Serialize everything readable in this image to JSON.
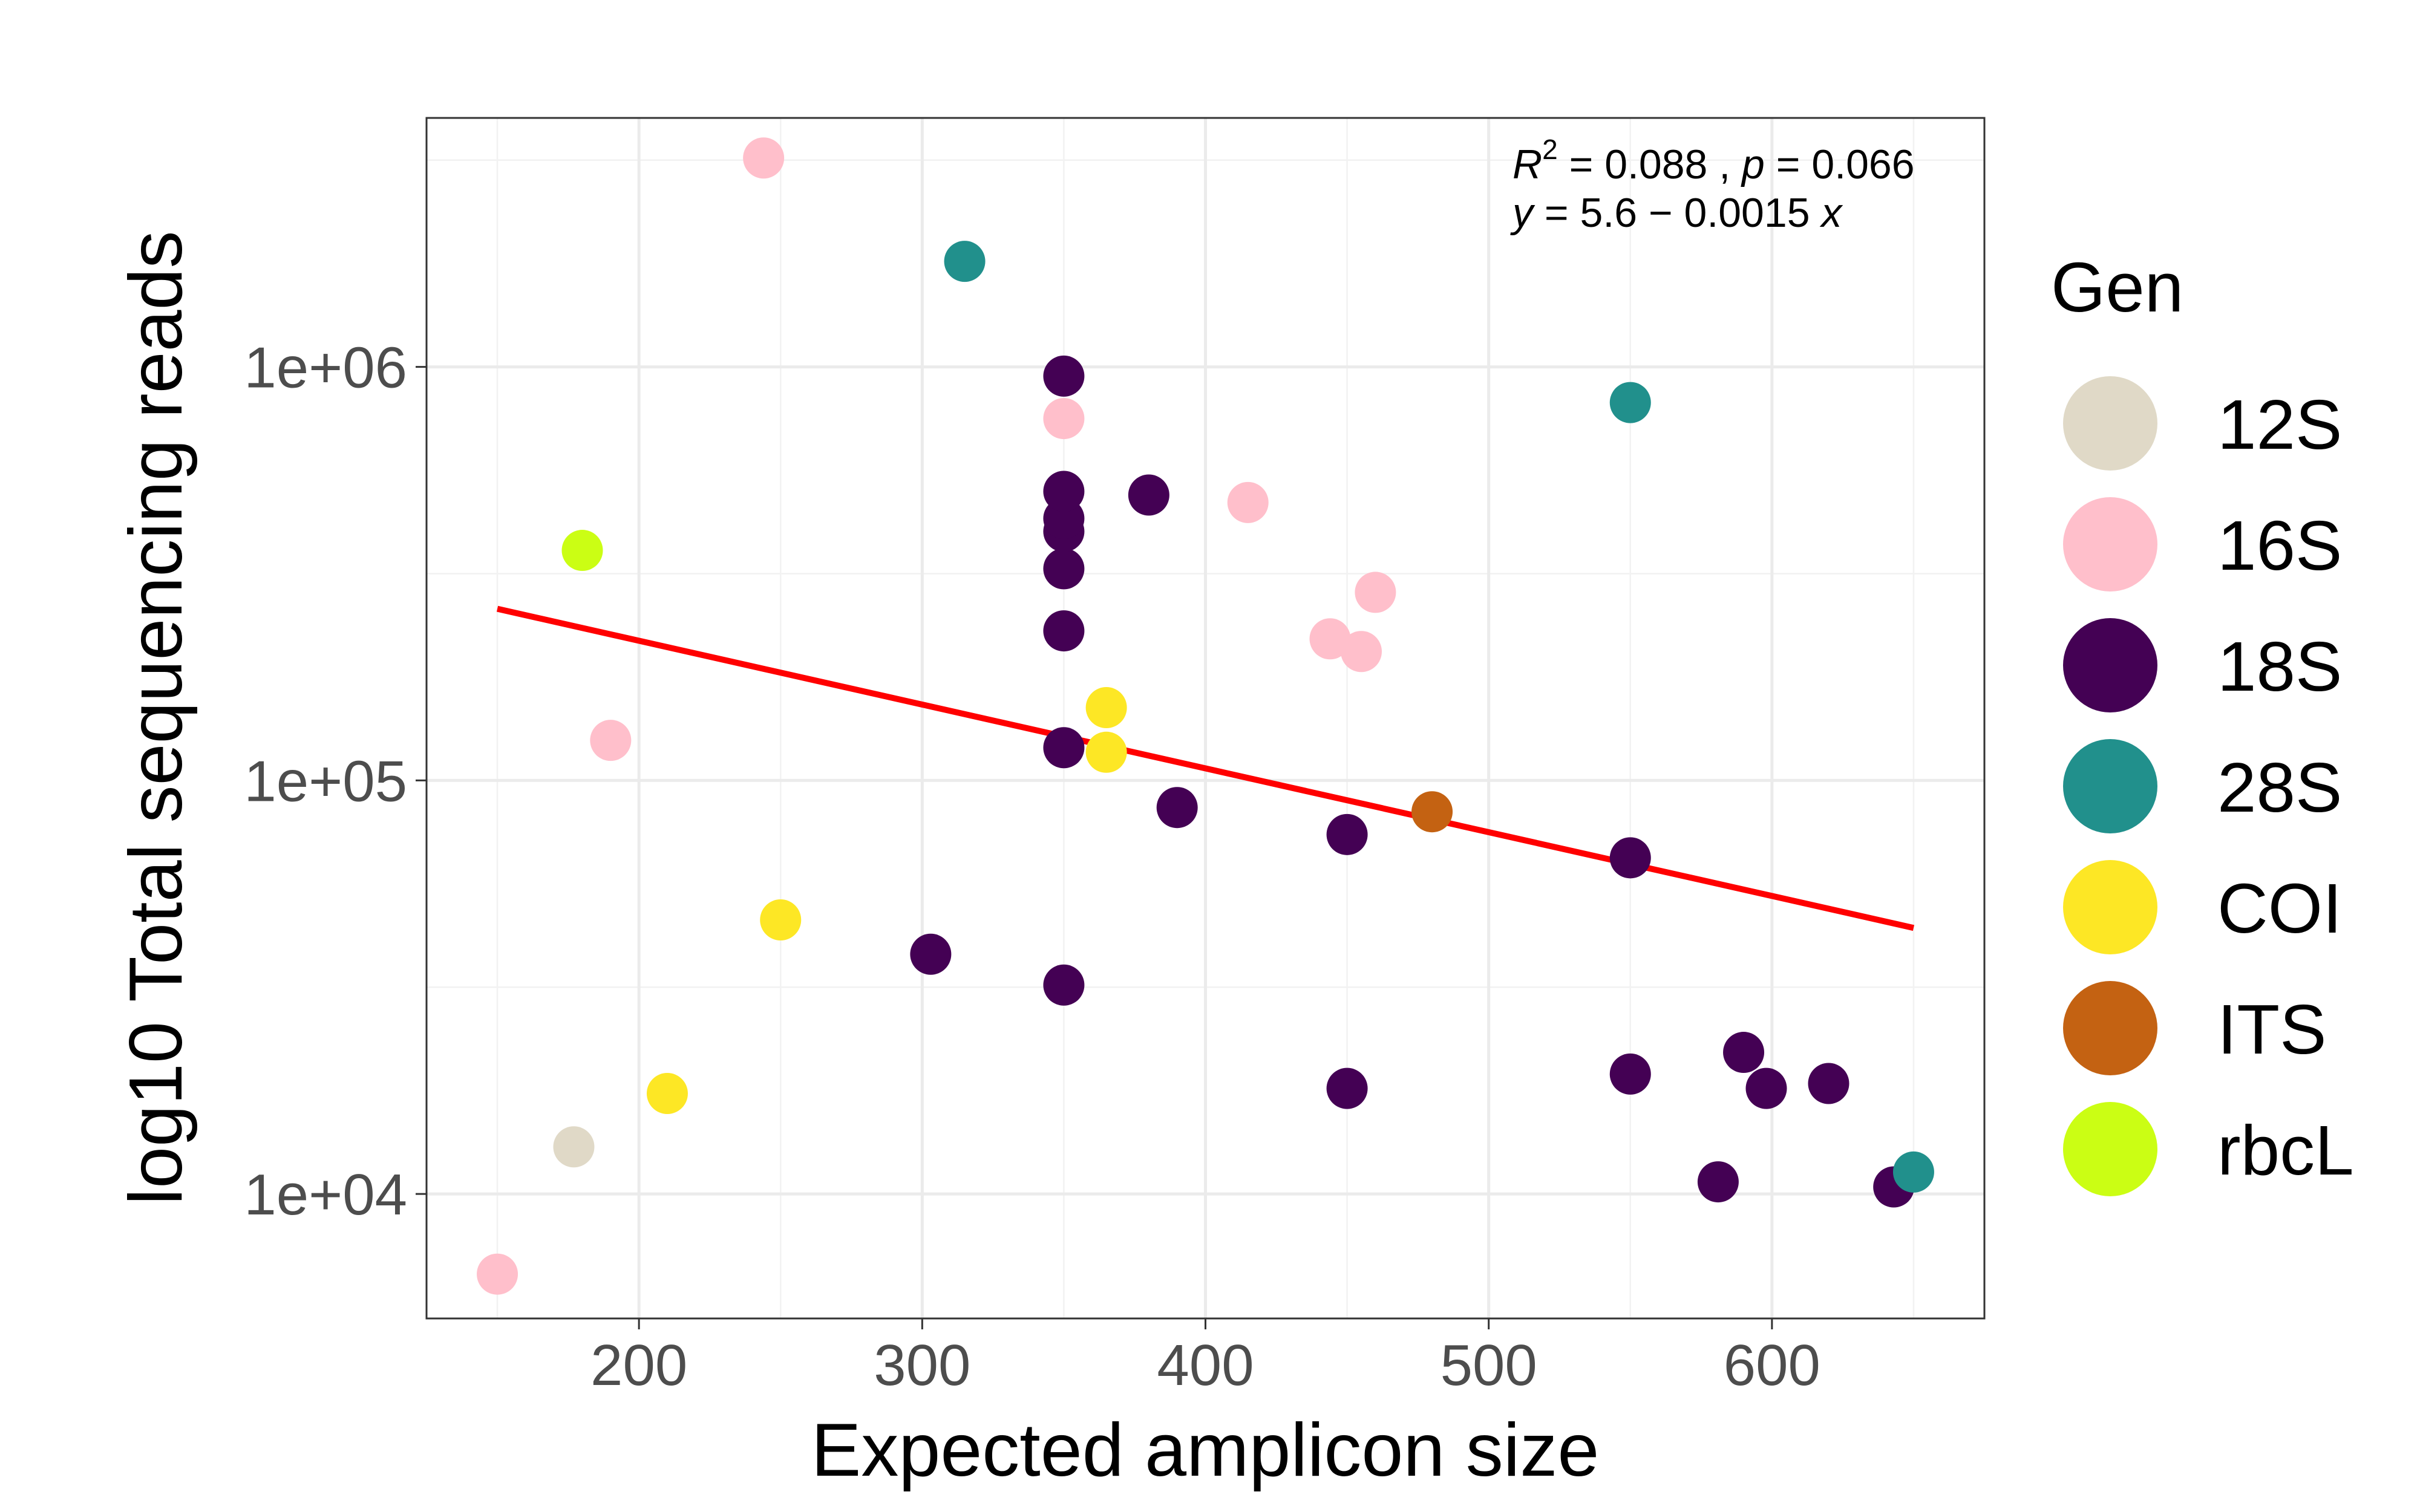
{
  "chart_data": {
    "type": "scatter",
    "title": "",
    "xlabel": "Expected amplicon size",
    "ylabel": "log10 Total sequencing reads",
    "xlim": [
      125,
      675
    ],
    "ylim": [
      5000,
      4000000
    ],
    "y_scale": "log10",
    "x_ticks": [
      {
        "value": 200,
        "label": "200"
      },
      {
        "value": 300,
        "label": "300"
      },
      {
        "value": 400,
        "label": "400"
      },
      {
        "value": 500,
        "label": "500"
      },
      {
        "value": 600,
        "label": "600"
      }
    ],
    "y_ticks": [
      {
        "value": 10000,
        "label": "1e+04"
      },
      {
        "value": 100000,
        "label": "1e+05"
      },
      {
        "value": 1000000,
        "label": "1e+06"
      }
    ],
    "grid": true,
    "legend": {
      "title": "Gen",
      "position": "right",
      "entries": [
        {
          "name": "12S",
          "color": "#e0d9c7"
        },
        {
          "name": "16S",
          "color": "#ffbfcb"
        },
        {
          "name": "18S",
          "color": "#440154"
        },
        {
          "name": "28S",
          "color": "#21908c"
        },
        {
          "name": "COI",
          "color": "#fde725"
        },
        {
          "name": "ITS",
          "color": "#c46212"
        },
        {
          "name": "rbcL",
          "color": "#cbfe14"
        }
      ]
    },
    "series": [
      {
        "name": "12S",
        "points": [
          [
            177,
            13000
          ]
        ]
      },
      {
        "name": "16S",
        "points": [
          [
            150,
            6400
          ],
          [
            190,
            125000
          ],
          [
            244,
            3200000
          ],
          [
            350,
            750000
          ],
          [
            415,
            470000
          ],
          [
            444,
            220000
          ],
          [
            455,
            205000
          ],
          [
            460,
            285000
          ]
        ]
      },
      {
        "name": "18S",
        "points": [
          [
            303,
            38000
          ],
          [
            350,
            32000
          ],
          [
            350,
            120000
          ],
          [
            350,
            230000
          ],
          [
            350,
            325000
          ],
          [
            350,
            400000
          ],
          [
            350,
            430000
          ],
          [
            350,
            500000
          ],
          [
            350,
            950000
          ],
          [
            380,
            490000
          ],
          [
            390,
            86000
          ],
          [
            450,
            74000
          ],
          [
            450,
            18000
          ],
          [
            550,
            65000
          ],
          [
            550,
            19500
          ],
          [
            581,
            10700
          ],
          [
            590,
            22000
          ],
          [
            598,
            18000
          ],
          [
            620,
            18500
          ],
          [
            643,
            10400
          ]
        ]
      },
      {
        "name": "28S",
        "points": [
          [
            315,
            1800000
          ],
          [
            550,
            820000
          ],
          [
            650,
            11300
          ]
        ]
      },
      {
        "name": "COI",
        "points": [
          [
            210,
            17500
          ],
          [
            250,
            46000
          ],
          [
            365,
            150000
          ],
          [
            365,
            117000
          ]
        ]
      },
      {
        "name": "ITS",
        "points": [
          [
            480,
            84000
          ]
        ]
      },
      {
        "name": "rbcL",
        "points": [
          [
            180,
            360000
          ]
        ]
      }
    ],
    "fit_line": {
      "color": "#ff0000",
      "points": [
        [
          150,
          260000
        ],
        [
          650,
          44000
        ]
      ]
    },
    "annotation": {
      "line1": {
        "r": "R",
        "sup": "2",
        "a": " = 0.088 , ",
        "p": "p",
        "b": " = 0.066"
      },
      "line2": {
        "y": "y",
        "a": " = 5.6 − 0.0015 ",
        "x": "x"
      }
    }
  }
}
